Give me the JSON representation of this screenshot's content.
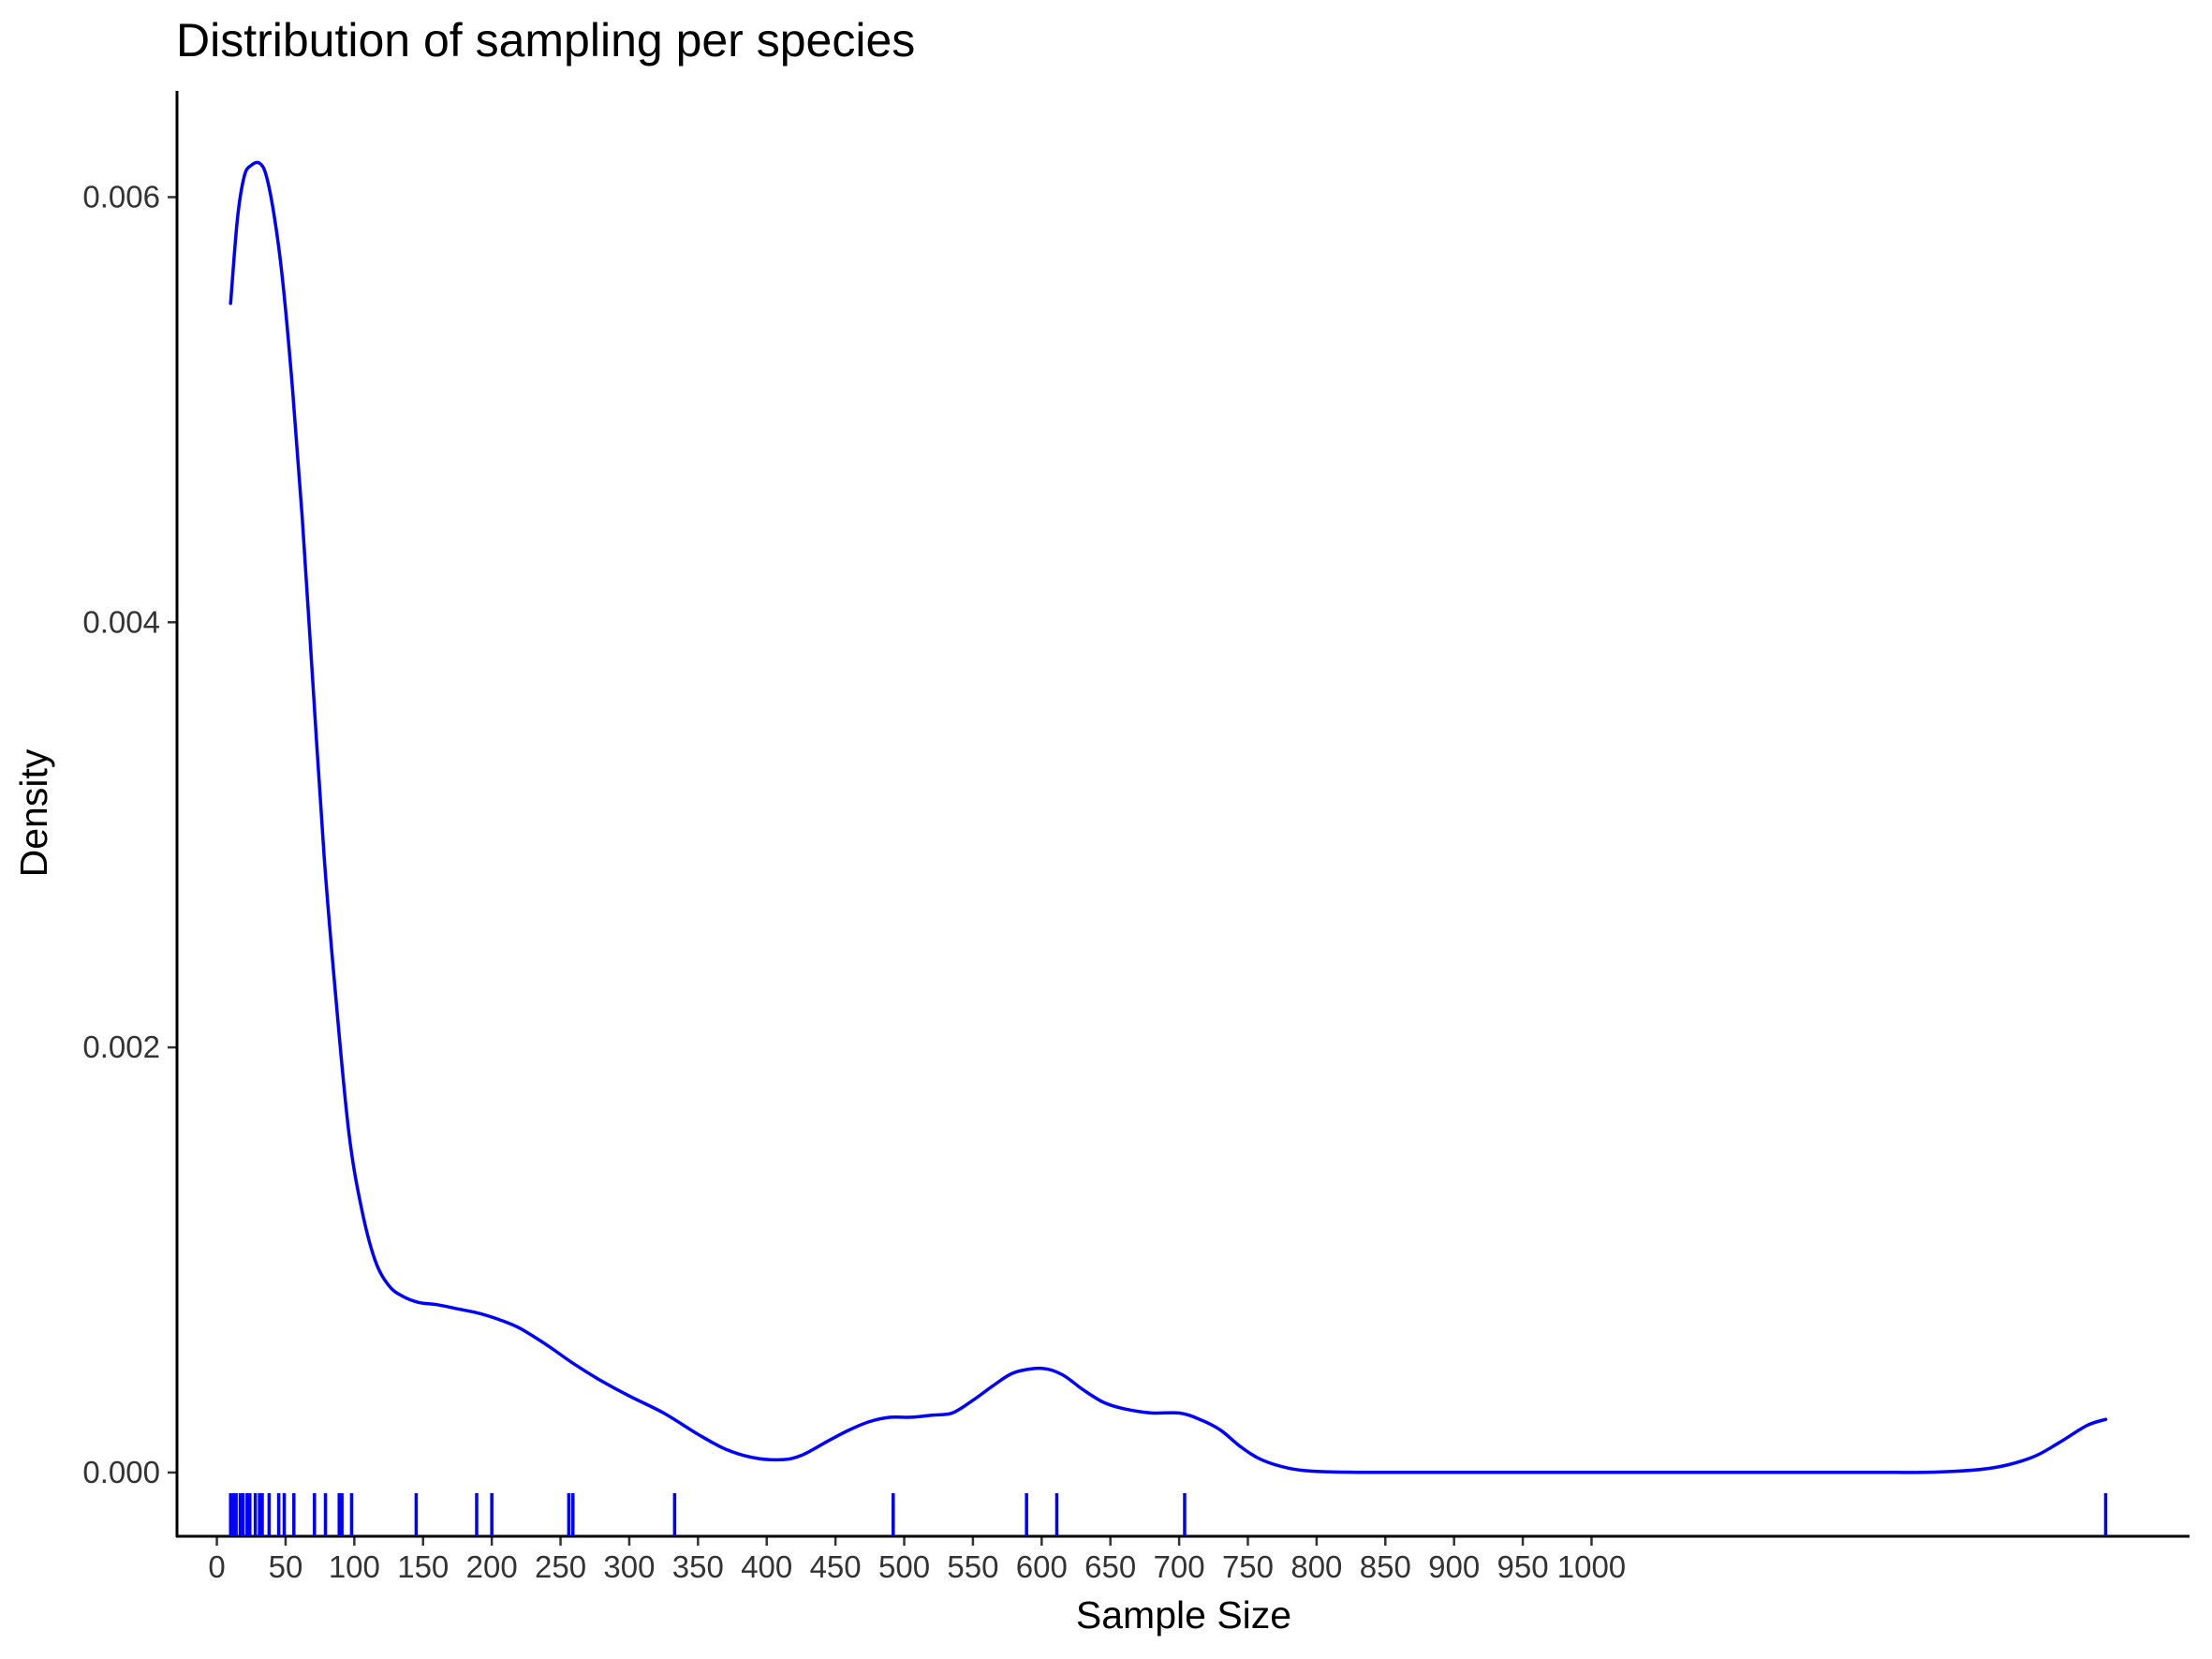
{
  "chart_data": {
    "type": "line",
    "title": "Distribution of sampling per species",
    "xlabel": "Sample Size",
    "ylabel": "Density",
    "xlim": [
      -29,
      1435
    ],
    "ylim": [
      -0.0003,
      0.0065
    ],
    "xticks": [
      0,
      50,
      100,
      150,
      200,
      250,
      300,
      350,
      400,
      450,
      500,
      550,
      600,
      650,
      700,
      750,
      800,
      850,
      900,
      950,
      1000
    ],
    "xtick_labels": [
      "0",
      "50",
      "100",
      "150",
      "200",
      "250",
      "300",
      "350",
      "400",
      "450",
      "500",
      "550",
      "600",
      "650",
      "700",
      "750",
      "800",
      "850",
      "900",
      "950",
      "1000"
    ],
    "yticks": [
      0.0,
      0.002,
      0.004,
      0.006
    ],
    "ytick_labels": [
      "0.000",
      "0.002",
      "0.004",
      "0.006"
    ],
    "line_color": "#0000ff",
    "grid": false,
    "legend": "none",
    "series": [
      {
        "x": [
          10,
          15,
          20,
          25,
          31,
          36,
          42,
          48,
          55,
          62,
          70,
          78,
          87,
          96,
          105,
          115,
          125,
          135,
          147,
          160,
          175,
          190,
          205,
          220,
          240,
          260,
          280,
          300,
          325,
          350,
          370,
          390,
          410,
          425,
          445,
          460,
          475,
          490,
          505,
          520,
          535,
          550,
          565,
          580,
          600,
          615,
          630,
          645,
          660,
          680,
          700,
          715,
          730,
          745,
          760,
          780,
          800,
          830,
          900,
          1000,
          1100,
          1200,
          1250,
          1290,
          1320,
          1340,
          1360,
          1374
        ],
        "y": [
          0.0055,
          0.0059,
          0.0061,
          0.00615,
          0.00616,
          0.0061,
          0.0059,
          0.0056,
          0.0051,
          0.0045,
          0.0037,
          0.0029,
          0.0022,
          0.0016,
          0.00125,
          0.001,
          0.00088,
          0.00083,
          0.0008,
          0.00079,
          0.00077,
          0.00075,
          0.00072,
          0.00068,
          0.0006,
          0.00051,
          0.00043,
          0.00036,
          0.00028,
          0.00018,
          0.00011,
          7e-05,
          6e-05,
          8e-05,
          0.00015,
          0.0002,
          0.00024,
          0.00026,
          0.00026,
          0.00027,
          0.00028,
          0.00034,
          0.00041,
          0.00047,
          0.00049,
          0.00046,
          0.00039,
          0.00033,
          0.0003,
          0.00028,
          0.00028,
          0.00025,
          0.0002,
          0.00012,
          6e-05,
          2e-05,
          5e-06,
          1e-06,
          1e-06,
          1e-06,
          1e-06,
          1e-06,
          2e-06,
          2e-05,
          7e-05,
          0.00014,
          0.00022,
          0.00025
        ]
      }
    ],
    "rug": [
      10,
      12,
      14,
      17,
      19,
      22,
      24,
      28,
      31,
      33,
      38,
      45,
      49,
      56,
      71,
      79,
      89,
      91,
      98,
      145,
      189,
      200,
      256,
      259,
      333,
      492,
      589,
      611,
      704,
      1374
    ]
  }
}
